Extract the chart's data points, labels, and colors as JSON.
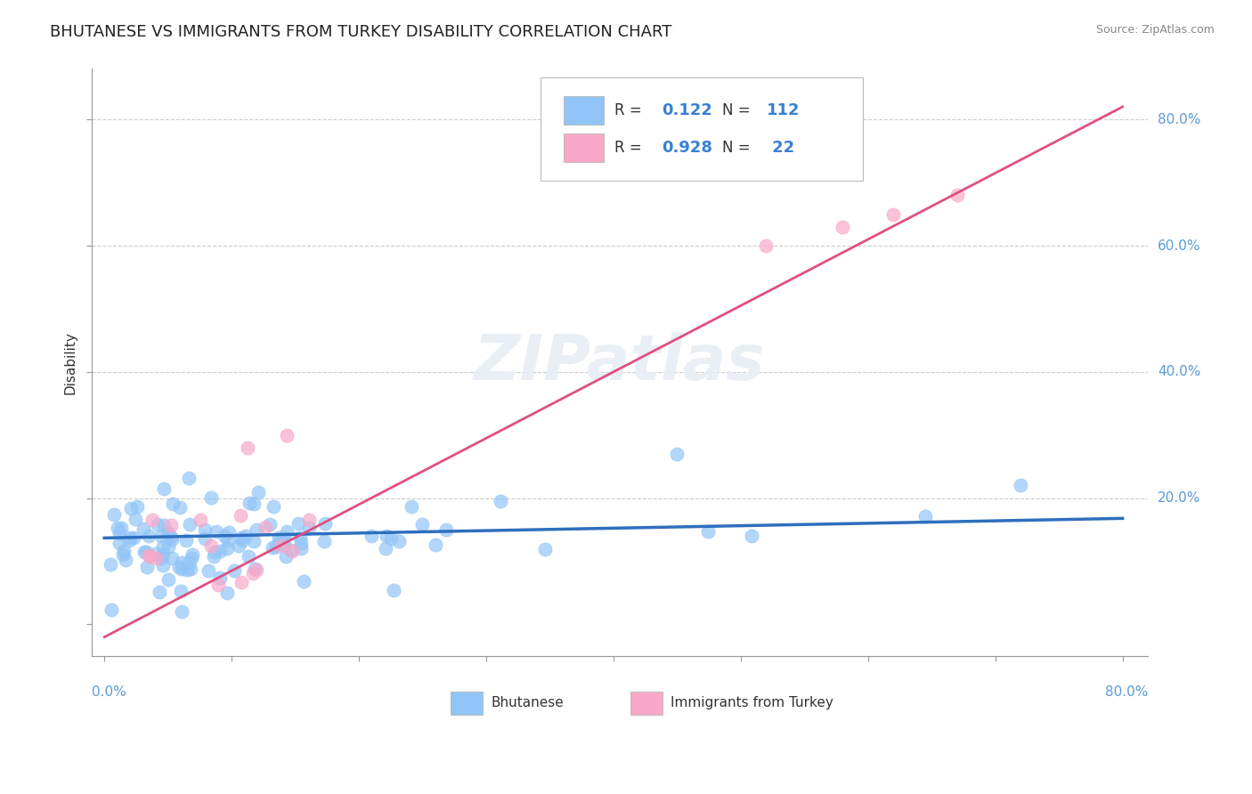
{
  "title": "BHUTANESE VS IMMIGRANTS FROM TURKEY DISABILITY CORRELATION CHART",
  "source": "Source: ZipAtlas.com",
  "ylabel": "Disability",
  "xlim": [
    -0.01,
    0.82
  ],
  "ylim": [
    -0.05,
    0.88
  ],
  "blue_R": "0.122",
  "blue_N": "112",
  "pink_R": "0.928",
  "pink_N": "22",
  "blue_color": "#92C5F7",
  "pink_color": "#F9A8C9",
  "blue_line_color": "#2E6FBF",
  "pink_line_color": "#E05080",
  "legend_blue_label": "Bhutanese",
  "legend_pink_label": "Immigrants from Turkey",
  "blue_line_x": [
    0.0,
    0.8
  ],
  "blue_line_y": [
    0.137,
    0.168
  ],
  "pink_line_x": [
    0.0,
    0.8
  ],
  "pink_line_y": [
    -0.02,
    0.82
  ],
  "ytick_vals": [
    0.0,
    0.2,
    0.4,
    0.6,
    0.8
  ],
  "ytick_labels": [
    "",
    "20.0%",
    "40.0%",
    "60.0%",
    "80.0%"
  ],
  "watermark_text": "ZIPatlas"
}
